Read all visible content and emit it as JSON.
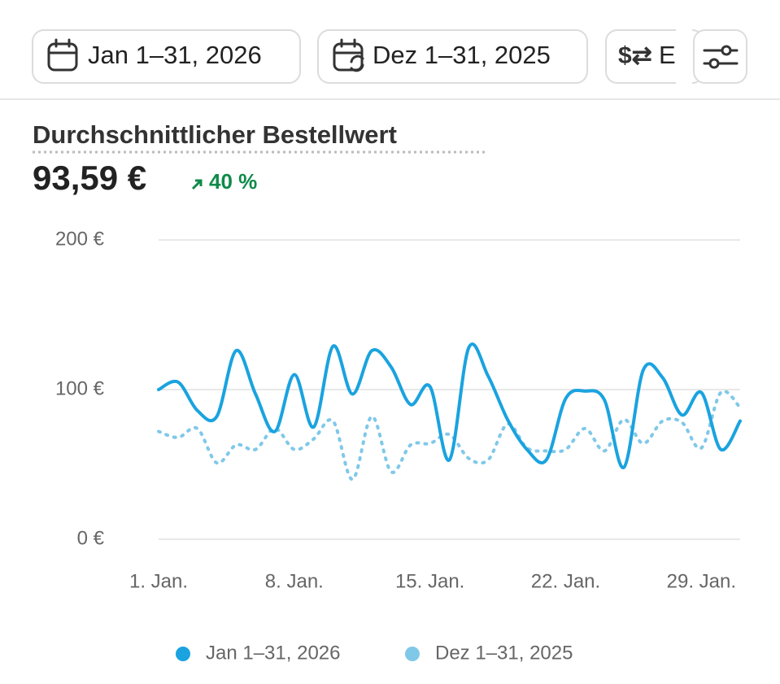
{
  "header": {
    "buttons": [
      "Jan 1–31, 2026",
      "Dez 1–31, 2025",
      "E"
    ]
  },
  "metric": {
    "title": "Durchschnittlicher Bestellwert",
    "value": "93,59 €",
    "change": "40 %"
  },
  "chart_data": {
    "type": "line",
    "x": [
      1,
      2,
      3,
      4,
      5,
      6,
      7,
      8,
      9,
      10,
      11,
      12,
      13,
      14,
      15,
      16,
      17,
      18,
      19,
      20,
      21,
      22,
      23,
      24,
      25,
      26,
      27,
      28,
      29,
      30,
      31
    ],
    "xlim": [
      1,
      31
    ],
    "xticks": [
      {
        "value": 1,
        "label": "1. Jan."
      },
      {
        "value": 8,
        "label": "8. Jan."
      },
      {
        "value": 15,
        "label": "15. Jan."
      },
      {
        "value": 22,
        "label": "22. Jan."
      },
      {
        "value": 29,
        "label": "29. Jan."
      }
    ],
    "ylim": [
      0,
      200
    ],
    "yticks": [
      {
        "value": 0,
        "label": "0 €"
      },
      {
        "value": 100,
        "label": "100 €"
      },
      {
        "value": 200,
        "label": "200 €"
      }
    ],
    "grid": true,
    "series": [
      {
        "name": "Jan 1–31, 2026",
        "color": "#1aa3df",
        "style": "solid",
        "values": [
          100,
          105,
          86,
          82,
          126,
          97,
          72,
          110,
          75,
          129,
          97,
          126,
          115,
          90,
          102,
          53,
          128,
          109,
          80,
          60,
          53,
          94,
          99,
          93,
          48,
          113,
          108,
          83,
          98,
          60,
          79
        ]
      },
      {
        "name": "Dez 1–31, 2025",
        "color": "#80c8e8",
        "style": "dotted",
        "values": [
          72,
          68,
          74,
          51,
          63,
          60,
          74,
          60,
          67,
          79,
          40,
          82,
          45,
          63,
          64,
          70,
          54,
          53,
          77,
          61,
          59,
          60,
          74,
          59,
          80,
          64,
          79,
          78,
          61,
          98,
          88
        ]
      }
    ]
  }
}
